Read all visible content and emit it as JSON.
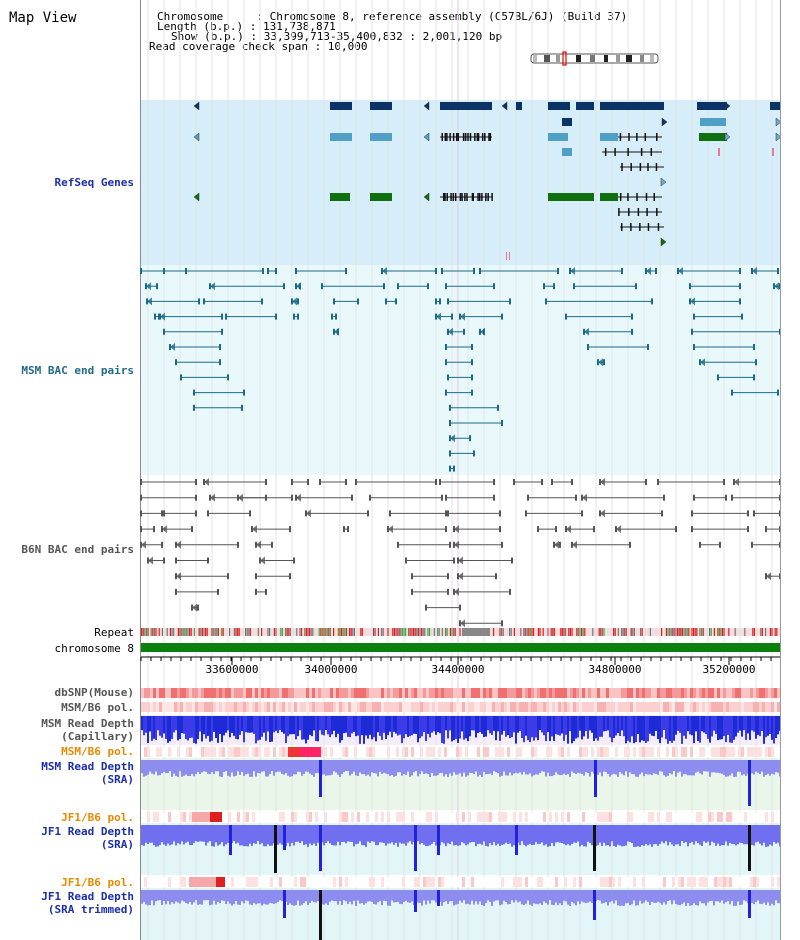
{
  "page": {
    "title": "Map View"
  },
  "info": {
    "chromosome": "Chromosome     : Chromosome 8, reference assembly (C57BL/6J) (Build 37)",
    "length": "Length (b.p.) : 131,738,871",
    "show": "Show (b.p.) : 33,399,713-35,400,832 : 2,001,120 bp",
    "span": "Read coverage check span : 10,000"
  },
  "tracks": {
    "refseq": "RefSeq Genes",
    "msm_bac": "MSM BAC end pairs",
    "b6n_bac": "B6N BAC end pairs",
    "repeat": "Repeat",
    "chrom": "chromosome 8",
    "dbsnp": "dbSNP(Mouse)",
    "msm_pol1": "MSM/B6 pol.",
    "msm_depth_cap_1": "MSM Read Depth",
    "msm_depth_cap_2": "(Capillary)",
    "msm_pol2": "MSM/B6 pol.",
    "msm_depth_sra_1": "MSM Read Depth",
    "msm_depth_sra_2": "(SRA)",
    "jf1_pol1": "JF1/B6 pol.",
    "jf1_depth_sra_1": "JF1 Read Depth",
    "jf1_depth_sra_2": "(SRA)",
    "jf1_pol2": "JF1/B6 pol.",
    "jf1_depth_trim_1": "JF1 Read Depth",
    "jf1_depth_trim_2": "(SRA trimmed)"
  },
  "axis": {
    "ticks": [
      "33600000",
      "34000000",
      "34400000",
      "34800000",
      "35200000"
    ]
  },
  "colors": {
    "refseq_bg": "#d6eef9",
    "bac_bg": "#e9f9fb",
    "navy": "#0c3366",
    "teal_gene": "#4f9fc6",
    "green_gene": "#107010",
    "bac_line": "#1a6a8a",
    "b6n_line": "#555555",
    "label_blue": "#1b2fa8",
    "label_teal": "#1f6a87",
    "label_gray": "#555555",
    "label_orange": "#e88a00",
    "chrom_green": "#0c800c"
  }
}
